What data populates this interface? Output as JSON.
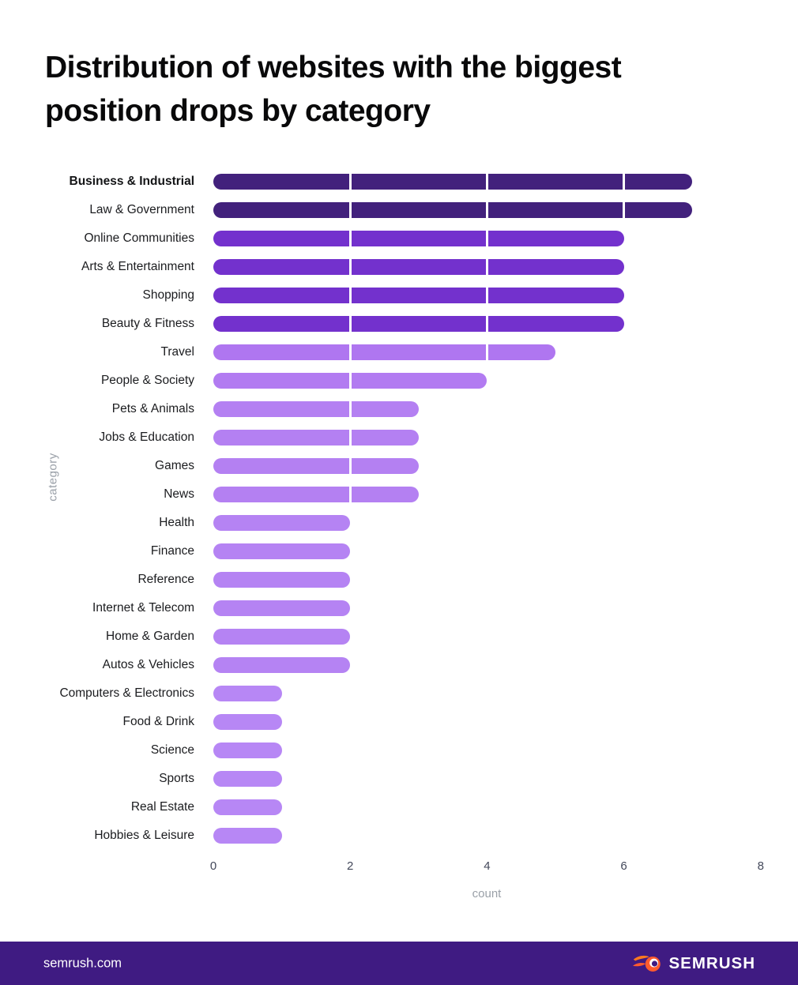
{
  "header": {
    "title_lines": [
      "Distribution of websites with the biggest",
      "position drops by category"
    ],
    "title_color": "#09090a"
  },
  "chart_data": {
    "type": "bar",
    "orientation": "horizontal",
    "title": "Distribution of websites with the biggest position drops by category",
    "xlabel": "count",
    "ylabel": "category",
    "xlim": [
      0,
      8
    ],
    "xticks": [
      0,
      2,
      4,
      6,
      8
    ],
    "grid": false,
    "legend": false,
    "categories": [
      "Business & Industrial",
      "Law & Government",
      "Online Communities",
      "Arts & Entertainment",
      "Shopping",
      "Beauty & Fitness",
      "Travel",
      "People & Society",
      "Pets & Animals",
      "Jobs & Education",
      "Games",
      "News",
      "Health",
      "Finance",
      "Reference",
      "Internet & Telecom",
      "Home & Garden",
      "Autos & Vehicles",
      "Computers & Electronics",
      "Food & Drink",
      "Science",
      "Sports",
      "Real Estate",
      "Hobbies & Leisure"
    ],
    "values": [
      7,
      7,
      6,
      6,
      6,
      6,
      5,
      4,
      3,
      3,
      3,
      3,
      2,
      2,
      2,
      2,
      2,
      2,
      1,
      1,
      1,
      1,
      1,
      1
    ],
    "emphasized_category": "Business & Industrial",
    "bar_colors_by_value": {
      "7": "#42217C",
      "6": "#7331CD",
      "5": "#AF76F0",
      "4": "#B27BF1",
      "3": "#B480F2",
      "2": "#B583F3",
      "1": "#B787F5"
    },
    "segment_divider_color": "#FFFFFF",
    "tick_label_color": "#43485a",
    "axis_title_color": "#9aa0a8"
  },
  "footer": {
    "site": "semrush.com",
    "brand": "SEMRUSH",
    "background": "#3F1B82",
    "logo_flame_color": "#FF5B2E",
    "logo_flame_accent": "#FF7A1F",
    "brand_text_color": "#FFFFFF"
  }
}
